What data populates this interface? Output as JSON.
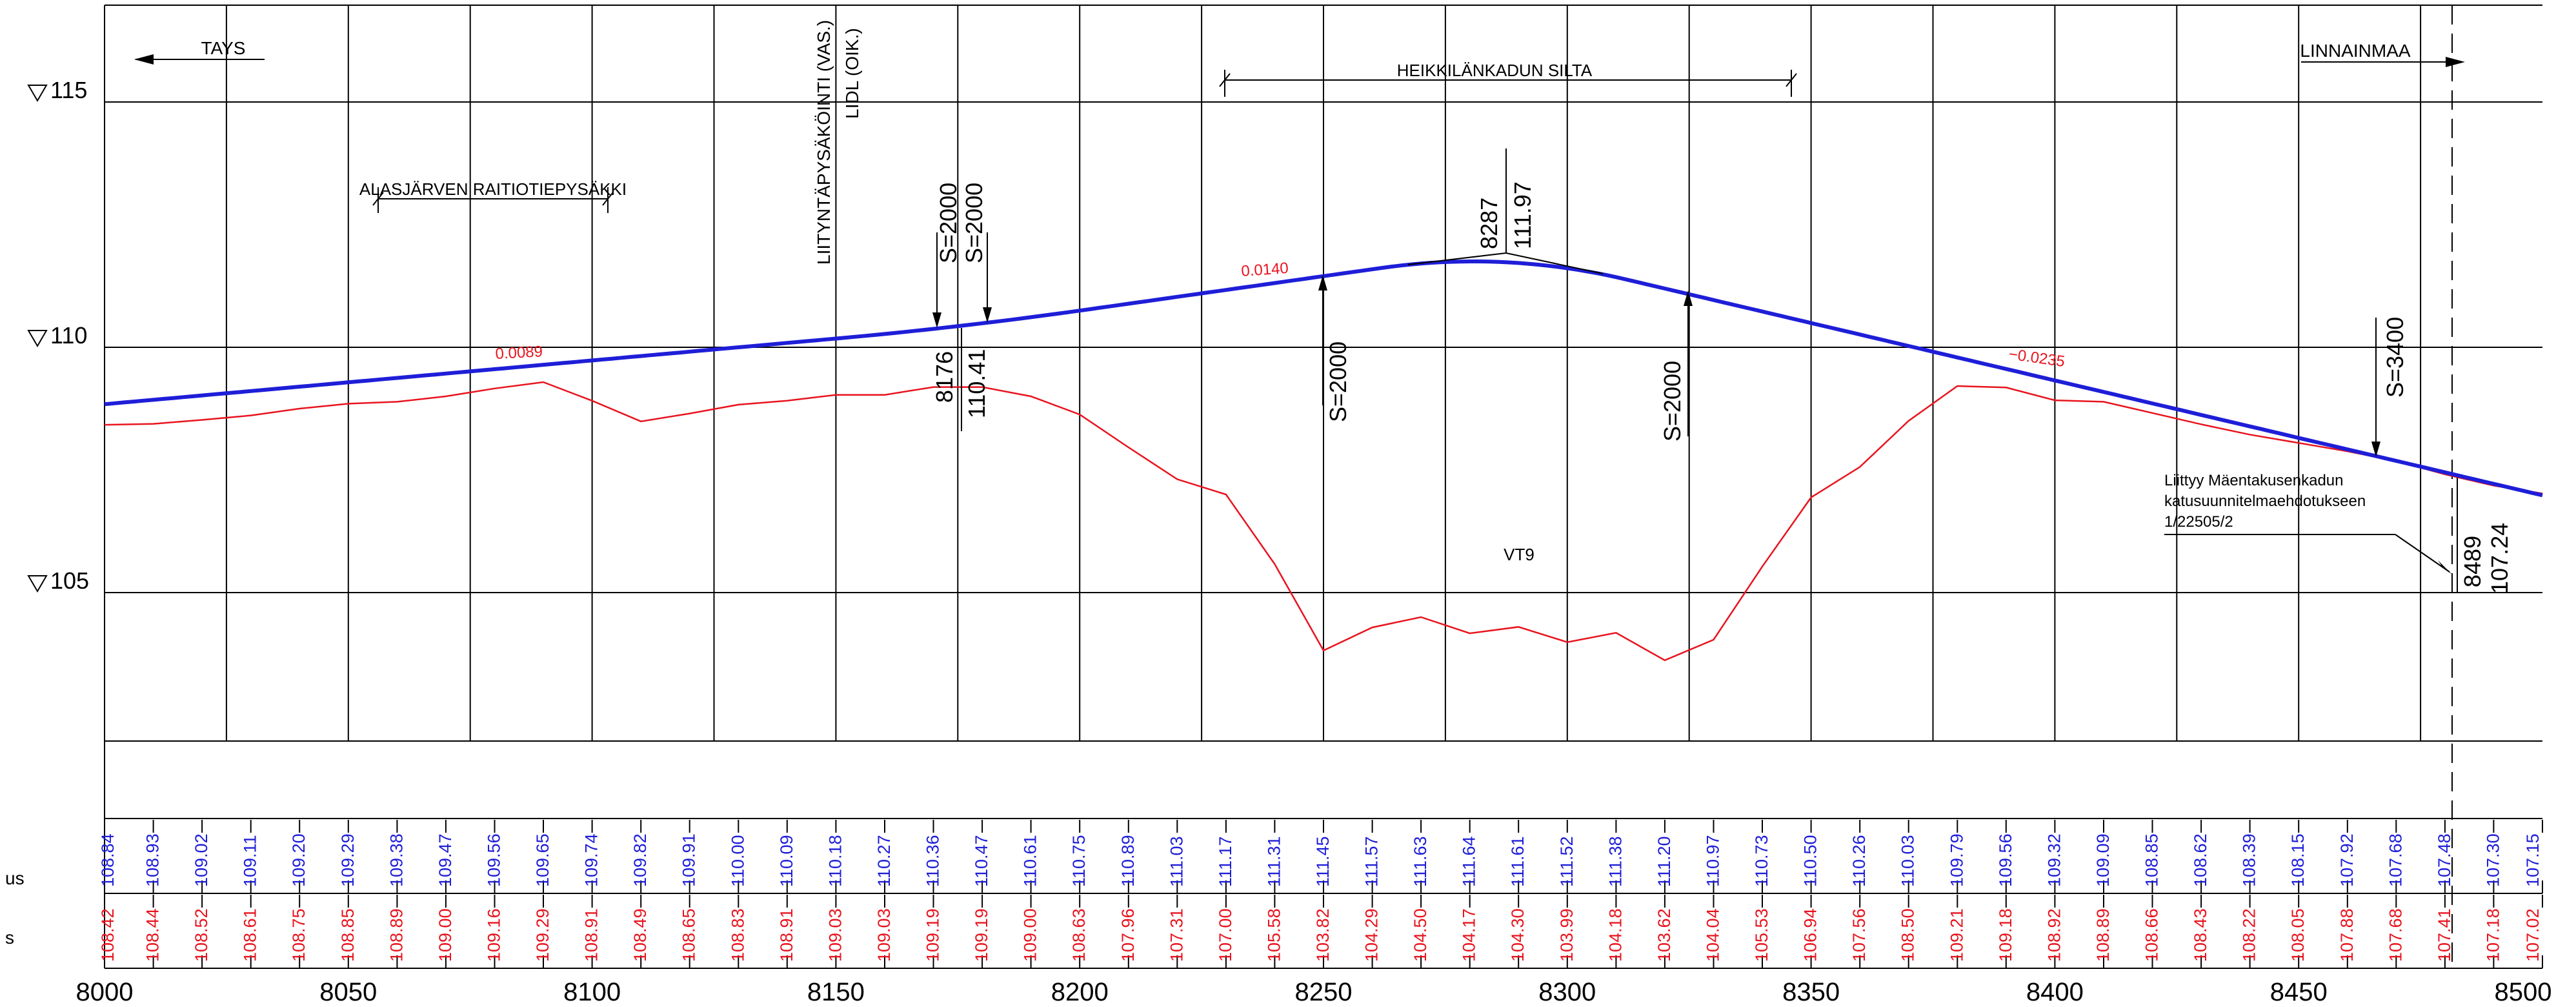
{
  "colors": {
    "grade_line": "#1e1ed8",
    "ground_line": "#e8141e",
    "grid": "#000000",
    "design_value": "#1e1ed8",
    "ground_value": "#e8141e"
  },
  "elevation_labels": [
    "115",
    "110",
    "105"
  ],
  "row_labels": {
    "design": "us",
    "ground": "s"
  },
  "notes": {
    "tays": "TAYS",
    "linnainmaa": "LINNAINMAA",
    "raitiotie": "ALASJÄRVEN RAITIOTIEPYSÄKKI",
    "liityntapysakointi": "LIITYNTÄPYSÄKÖINTI (VAS.)",
    "lidl": "LIDL (OIK.)",
    "silta": "HEIKKILÄNKADUN SILTA",
    "vt9": "VT9",
    "liittyy1": "Liittyy Mäentakusenkadun",
    "liittyy2": "katusuunnitelmaehdotukseen",
    "liittyy3": "1/22505/2"
  },
  "curves": {
    "s1a": "S=2000",
    "s1b": "S=2000",
    "s2": "S=2000",
    "s3": "S=2000",
    "s4": "S=3400"
  },
  "points": {
    "p1_station": "8176",
    "p1_elev": "110.41",
    "p2_station": "8287",
    "p2_elev": "111.97",
    "p3_station": "8489",
    "p3_elev": "107.24"
  },
  "slopes": {
    "s1": "0.0089",
    "s2": "0.0140",
    "s3": "−0.0235"
  },
  "chart_data": {
    "type": "line",
    "xlabel": "",
    "ylabel": "",
    "xlim": [
      8000,
      8500
    ],
    "ylim": [
      102,
      117
    ],
    "x_ticks": [
      "8000",
      "8050",
      "8100",
      "8150",
      "8200",
      "8250",
      "8300",
      "8350",
      "8400",
      "8450",
      "8500"
    ],
    "table_stations": [
      8000,
      8010,
      8020,
      8030,
      8040,
      8050,
      8060,
      8070,
      8080,
      8090,
      8100,
      8110,
      8120,
      8130,
      8140,
      8150,
      8160,
      8170,
      8180,
      8190,
      8200,
      8210,
      8220,
      8230,
      8240,
      8250,
      8260,
      8270,
      8280,
      8290,
      8300,
      8310,
      8320,
      8330,
      8340,
      8350,
      8360,
      8370,
      8380,
      8390,
      8400,
      8410,
      8420,
      8430,
      8440,
      8450,
      8460,
      8470,
      8480,
      8490,
      8500
    ],
    "design_values": [
      "108.84",
      "108.93",
      "109.02",
      "109.11",
      "109.20",
      "109.29",
      "109.38",
      "109.47",
      "109.56",
      "109.65",
      "109.74",
      "109.82",
      "109.91",
      "110.00",
      "110.09",
      "110.18",
      "110.27",
      "110.36",
      "110.47",
      "110.61",
      "110.75",
      "110.89",
      "111.03",
      "111.17",
      "111.31",
      "111.45",
      "111.57",
      "111.63",
      "111.64",
      "111.61",
      "111.52",
      "111.38",
      "111.20",
      "110.97",
      "110.73",
      "110.50",
      "110.26",
      "110.03",
      "109.79",
      "109.56",
      "109.32",
      "109.09",
      "108.85",
      "108.62",
      "108.39",
      "108.15",
      "107.92",
      "107.68",
      "107.48",
      "107.30",
      "107.15"
    ],
    "ground_values": [
      "108.42",
      "108.44",
      "108.52",
      "108.61",
      "108.75",
      "108.85",
      "108.89",
      "109.00",
      "109.16",
      "109.29",
      "108.91",
      "108.49",
      "108.65",
      "108.83",
      "108.91",
      "109.03",
      "109.03",
      "109.19",
      "109.19",
      "109.00",
      "108.63",
      "107.96",
      "107.31",
      "107.00",
      "105.58",
      "103.82",
      "104.29",
      "104.50",
      "104.17",
      "104.30",
      "103.99",
      "104.18",
      "103.62",
      "104.04",
      "105.53",
      "106.94",
      "107.56",
      "108.50",
      "109.21",
      "109.18",
      "108.92",
      "108.89",
      "108.66",
      "108.43",
      "108.22",
      "108.05",
      "107.88",
      "107.68",
      "107.41",
      "107.18",
      "107.02"
    ],
    "series": [
      {
        "name": "",
        "x": [
          8000,
          8176,
          8287,
          8489,
          8500
        ],
        "y": [
          108.84,
          110.41,
          111.97,
          107.24,
          107.15
        ]
      },
      {
        "name": "",
        "x": [
          8000,
          8010,
          8020,
          8030,
          8040,
          8050,
          8060,
          8070,
          8080,
          8090,
          8100,
          8110,
          8120,
          8130,
          8140,
          8150,
          8160,
          8170,
          8180,
          8190,
          8200,
          8210,
          8220,
          8230,
          8240,
          8250,
          8260,
          8270,
          8280,
          8290,
          8300,
          8310,
          8320,
          8330,
          8340,
          8350,
          8360,
          8370,
          8380,
          8390,
          8400,
          8410,
          8420,
          8430,
          8440,
          8450,
          8460,
          8470,
          8480,
          8490,
          8500
        ],
        "y": [
          108.42,
          108.44,
          108.52,
          108.61,
          108.75,
          108.85,
          108.89,
          109.0,
          109.16,
          109.29,
          108.91,
          108.49,
          108.65,
          108.83,
          108.91,
          109.03,
          109.03,
          109.19,
          109.19,
          109.0,
          108.63,
          107.96,
          107.31,
          107.0,
          105.58,
          103.82,
          104.29,
          104.5,
          104.17,
          104.3,
          103.99,
          104.18,
          103.62,
          104.04,
          105.53,
          106.94,
          107.56,
          108.5,
          109.21,
          109.18,
          108.92,
          108.89,
          108.66,
          108.43,
          108.22,
          108.05,
          107.88,
          107.68,
          107.41,
          107.18,
          107.02
        ]
      }
    ]
  }
}
